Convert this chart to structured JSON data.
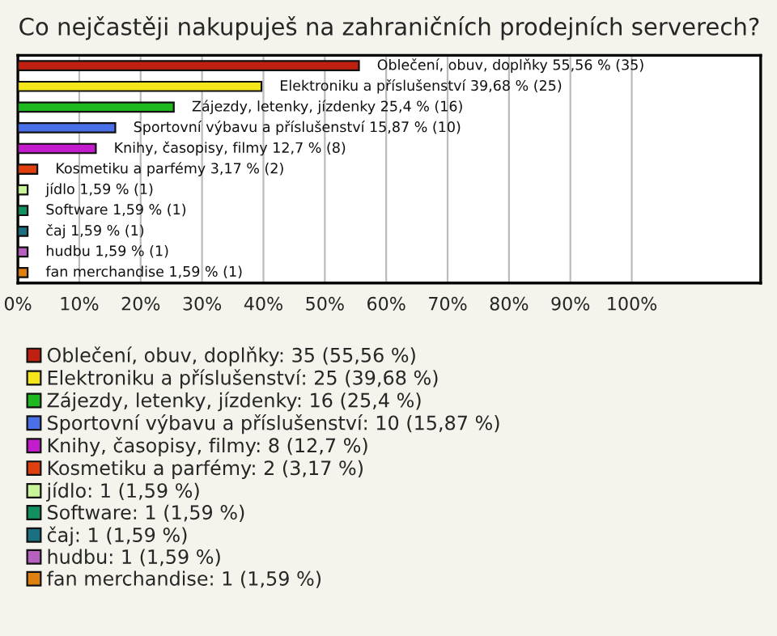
{
  "chart_data": {
    "type": "bar",
    "orientation": "horizontal",
    "title": "Co nejčastěji nakupuješ na zahraničních prodejních serverech?",
    "categories": [
      null,
      null,
      null,
      null,
      null,
      null,
      null,
      null,
      null,
      null,
      null
    ],
    "series": [
      {
        "name": "Oblečení, obuv, doplňky: 35 (55,56 %)",
        "color": "#c0200f",
        "values": [
          55.56,
          null,
          null,
          null,
          null,
          null,
          null,
          null,
          null,
          null,
          null
        ],
        "value_labels": [
          "Oblečení, obuv, doplňky 55,56 % (35)",
          null,
          null,
          null,
          null,
          null,
          null,
          null,
          null,
          null,
          null
        ]
      },
      {
        "name": "Elektroniku a příslušenství: 25 (39,68 %)",
        "color": "#f5e61a",
        "values": [
          null,
          39.68,
          null,
          null,
          null,
          null,
          null,
          null,
          null,
          null,
          null
        ],
        "value_labels": [
          null,
          "Elektroniku a příslušenství 39,68 % (25)",
          null,
          null,
          null,
          null,
          null,
          null,
          null,
          null,
          null
        ]
      },
      {
        "name": "Zájezdy, letenky, jízdenky: 16 (25,4 %)",
        "color": "#1fb81f",
        "values": [
          null,
          null,
          25.4,
          null,
          null,
          null,
          null,
          null,
          null,
          null,
          null
        ],
        "value_labels": [
          null,
          null,
          "Zájezdy, letenky, jízdenky 25,4 % (16)",
          null,
          null,
          null,
          null,
          null,
          null,
          null,
          null
        ]
      },
      {
        "name": "Sportovní výbavu a příslušenství: 10 (15,87 %)",
        "color": "#4a70e8",
        "values": [
          null,
          null,
          null,
          15.87,
          null,
          null,
          null,
          null,
          null,
          null,
          null
        ],
        "value_labels": [
          null,
          null,
          null,
          "Sportovní výbavu a příslušenství 15,87 % (10)",
          null,
          null,
          null,
          null,
          null,
          null,
          null
        ]
      },
      {
        "name": "Knihy, časopisy, filmy: 8 (12,7 %)",
        "color": "#c21ccc",
        "values": [
          null,
          null,
          null,
          null,
          12.7,
          null,
          null,
          null,
          null,
          null,
          null
        ],
        "value_labels": [
          null,
          null,
          null,
          null,
          "Knihy, časopisy, filmy 12,7 % (8)",
          null,
          null,
          null,
          null,
          null,
          null
        ]
      },
      {
        "name": "Kosmetiku a parfémy: 2 (3,17 %)",
        "color": "#e0400f",
        "values": [
          null,
          null,
          null,
          null,
          null,
          3.17,
          null,
          null,
          null,
          null,
          null
        ],
        "value_labels": [
          null,
          null,
          null,
          null,
          null,
          "Kosmetiku a parfémy 3,17 % (2)",
          null,
          null,
          null,
          null,
          null
        ]
      },
      {
        "name": "jídlo: 1 (1,59 %)",
        "color": "#c8f59a",
        "values": [
          null,
          null,
          null,
          null,
          null,
          null,
          1.59,
          null,
          null,
          null,
          null
        ],
        "value_labels": [
          null,
          null,
          null,
          null,
          null,
          null,
          "jídlo 1,59 % (1)",
          null,
          null,
          null,
          null
        ]
      },
      {
        "name": "Software: 1 (1,59 %)",
        "color": "#119060",
        "values": [
          null,
          null,
          null,
          null,
          null,
          null,
          null,
          1.59,
          null,
          null,
          null
        ],
        "value_labels": [
          null,
          null,
          null,
          null,
          null,
          null,
          null,
          "Software 1,59 % (1)",
          null,
          null,
          null
        ]
      },
      {
        "name": "čaj: 1 (1,59 %)",
        "color": "#1a7080",
        "values": [
          null,
          null,
          null,
          null,
          null,
          null,
          null,
          null,
          1.59,
          null,
          null
        ],
        "value_labels": [
          null,
          null,
          null,
          null,
          null,
          null,
          null,
          null,
          "čaj 1,59 % (1)",
          null,
          null
        ]
      },
      {
        "name": "hudbu: 1 (1,59 %)",
        "color": "#b860c0",
        "values": [
          null,
          null,
          null,
          null,
          null,
          null,
          null,
          null,
          null,
          1.59,
          null
        ],
        "value_labels": [
          null,
          null,
          null,
          null,
          null,
          null,
          null,
          null,
          null,
          "hudbu 1,59 % (1)",
          null
        ]
      },
      {
        "name": "fan merchandise: 1 (1,59 %)",
        "color": "#e08010",
        "values": [
          null,
          null,
          null,
          null,
          null,
          null,
          null,
          null,
          null,
          null,
          1.59
        ],
        "value_labels": [
          null,
          null,
          null,
          null,
          null,
          null,
          null,
          null,
          null,
          null,
          "fan merchandise 1,59 % (1)"
        ]
      }
    ],
    "xlim": [
      0,
      121
    ],
    "xticks": [
      {
        "value": 0,
        "label": "0%"
      },
      {
        "value": 10,
        "label": "10%"
      },
      {
        "value": 20,
        "label": "20%"
      },
      {
        "value": 30,
        "label": "30%"
      },
      {
        "value": 40,
        "label": "40%"
      },
      {
        "value": 50,
        "label": "50%"
      },
      {
        "value": 60,
        "label": "60%"
      },
      {
        "value": 70,
        "label": "70%"
      },
      {
        "value": 80,
        "label": "80%"
      },
      {
        "value": 90,
        "label": "90%"
      },
      {
        "value": 100,
        "label": "100%"
      }
    ],
    "grid": "x",
    "tick_labels": "x",
    "legend": "bottom"
  }
}
